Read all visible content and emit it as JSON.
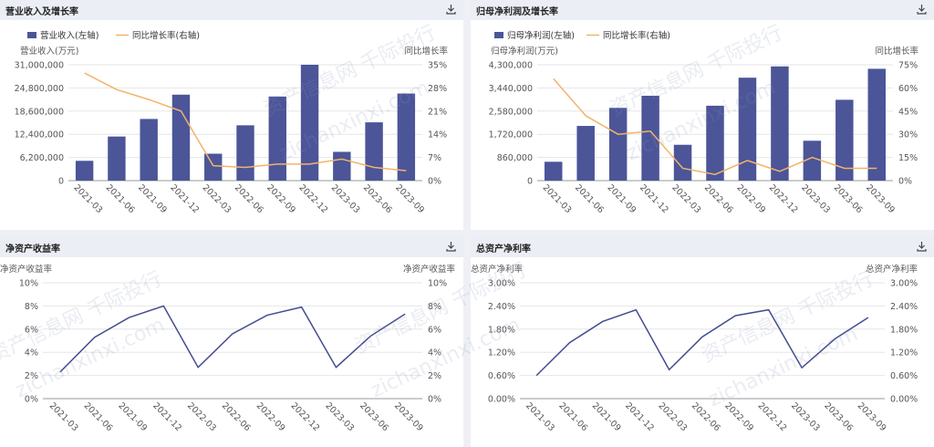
{
  "colors": {
    "bar": "#4b5598",
    "line_growth": "#f2b36a",
    "line_ratio": "#434c8f",
    "grid": "#e6e6e6",
    "text": "#555555"
  },
  "icons": {
    "download": "download-icon"
  },
  "watermark": {
    "text1": "资产信息网 千际投行",
    "text2": "zichanxinxi.com"
  },
  "panels": [
    {
      "title": "营业收入及增长率"
    },
    {
      "title": "归母净利润及增长率"
    },
    {
      "title": "净资产收益率"
    },
    {
      "title": "总资产净利率"
    }
  ],
  "chart_data": [
    {
      "type": "bar",
      "categories": [
        "2021-03",
        "2021-06",
        "2021-09",
        "2021-12",
        "2022-03",
        "2022-06",
        "2022-09",
        "2022-12",
        "2023-03",
        "2023-06",
        "2023-09"
      ],
      "legend": [
        "营业收入(左轴)",
        "同比增长率(右轴)"
      ],
      "ylabel_left": "营业收入(万元)",
      "ylabel_right": "同比增长率",
      "ylim_left": [
        0,
        31000000
      ],
      "ylim_right": [
        0,
        35
      ],
      "yticks_left": [
        "0",
        "6,200,000",
        "12,400,000",
        "18,600,000",
        "24,800,000",
        "31,000,000"
      ],
      "yticks_right": [
        "0%",
        "7%",
        "14%",
        "21%",
        "28%",
        "35%"
      ],
      "series": [
        {
          "name": "营业收入(左轴)",
          "type": "bar",
          "axis": "left",
          "values": [
            5300000,
            11800000,
            16500000,
            23000000,
            7200000,
            14800000,
            22500000,
            31000000,
            7700000,
            15600000,
            23300000
          ]
        },
        {
          "name": "同比增长率(右轴)",
          "type": "line",
          "axis": "right",
          "values": [
            32.5,
            27.5,
            24.5,
            21.0,
            4.5,
            4.0,
            5.0,
            5.0,
            6.5,
            4.0,
            3.0
          ]
        }
      ]
    },
    {
      "type": "bar",
      "categories": [
        "2021-03",
        "2021-06",
        "2021-09",
        "2021-12",
        "2022-03",
        "2022-06",
        "2022-09",
        "2022-12",
        "2023-03",
        "2023-06",
        "2023-09"
      ],
      "legend": [
        "归母净利润(左轴)",
        "同比增长率(右轴)"
      ],
      "ylabel_left": "归母净利润(万元)",
      "ylabel_right": "同比增长率",
      "ylim_left": [
        0,
        4300000
      ],
      "ylim_right": [
        0,
        75
      ],
      "yticks_left": [
        "0",
        "860,000",
        "1,720,000",
        "2,580,000",
        "3,440,000",
        "4,300,000"
      ],
      "yticks_right": [
        "0%",
        "15%",
        "30%",
        "45%",
        "60%",
        "75%"
      ],
      "series": [
        {
          "name": "归母净利润(左轴)",
          "type": "bar",
          "axis": "left",
          "values": [
            700000,
            2030000,
            2700000,
            3150000,
            1330000,
            2780000,
            3820000,
            4240000,
            1480000,
            3000000,
            4150000
          ]
        },
        {
          "name": "同比增长率(右轴)",
          "type": "line",
          "axis": "right",
          "values": [
            66,
            42,
            30,
            32,
            8,
            4,
            13,
            6,
            15,
            8,
            8
          ]
        }
      ]
    },
    {
      "type": "line",
      "categories": [
        "2021-03",
        "2021-06",
        "2021-09",
        "2021-12",
        "2022-03",
        "2022-06",
        "2022-09",
        "2022-12",
        "2023-03",
        "2023-06",
        "2023-09"
      ],
      "ylabel_left": "净资产收益率",
      "ylabel_right": "净资产收益率",
      "ylim": [
        0,
        10
      ],
      "yticks": [
        "0%",
        "2%",
        "4%",
        "6%",
        "8%",
        "10%"
      ],
      "series": [
        {
          "values": [
            2.3,
            5.3,
            7.0,
            8.0,
            2.7,
            5.6,
            7.2,
            7.9,
            2.7,
            5.4,
            7.3
          ]
        }
      ]
    },
    {
      "type": "line",
      "categories": [
        "2021-03",
        "2021-06",
        "2021-09",
        "2021-12",
        "2022-03",
        "2022-06",
        "2022-09",
        "2022-12",
        "2023-03",
        "2023-06",
        "2023-09"
      ],
      "ylabel_left": "总资产净利率",
      "ylabel_right": "总资产净利率",
      "ylim": [
        0,
        3.0
      ],
      "yticks": [
        "0.00%",
        "0.60%",
        "1.20%",
        "1.80%",
        "2.40%",
        "3.00%"
      ],
      "series": [
        {
          "values": [
            0.6,
            1.45,
            2.0,
            2.3,
            0.75,
            1.6,
            2.15,
            2.3,
            0.8,
            1.55,
            2.1
          ]
        }
      ]
    }
  ]
}
